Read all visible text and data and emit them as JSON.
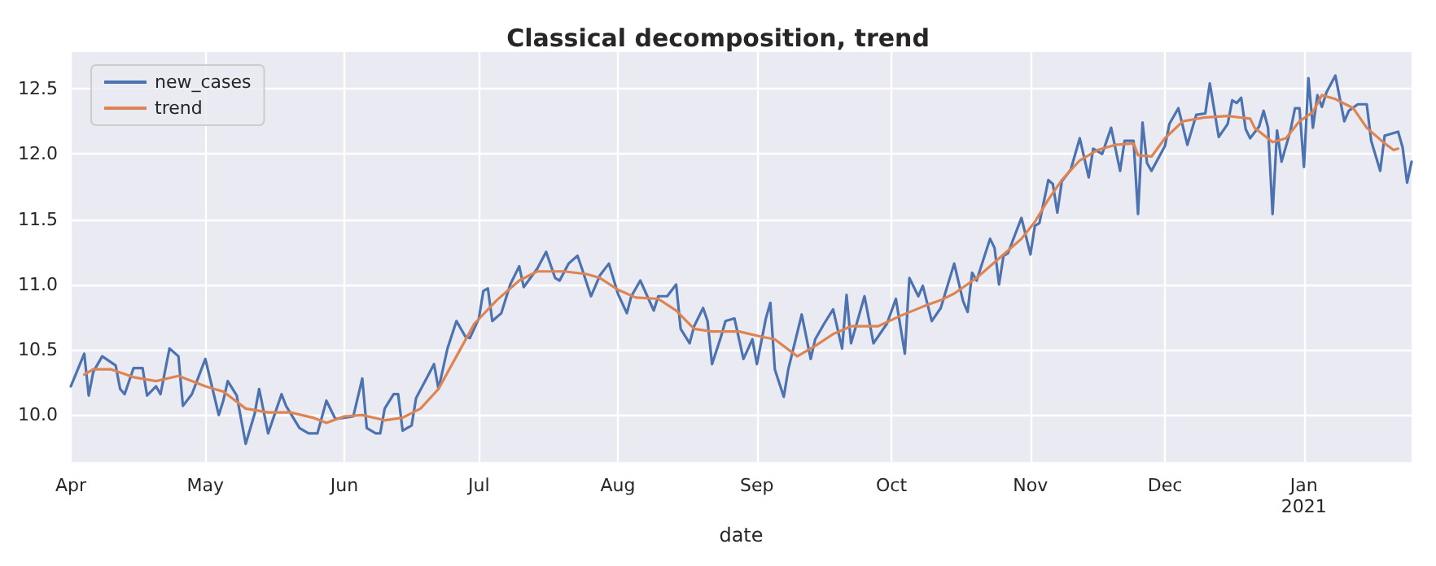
{
  "chart_data": {
    "type": "line",
    "title": "Classical decomposition, trend",
    "xlabel": "date",
    "legend": "top left",
    "grid": true,
    "line_style": "solid",
    "marker": "none",
    "xlim": [
      "2020-04-01",
      "2021-01-25"
    ],
    "xticks": [
      {
        "value": "2020-04-01",
        "label": "Apr"
      },
      {
        "value": "2020-05-01",
        "label": "May"
      },
      {
        "value": "2020-06-01",
        "label": "Jun"
      },
      {
        "value": "2020-07-01",
        "label": "Jul"
      },
      {
        "value": "2020-08-01",
        "label": "Aug"
      },
      {
        "value": "2020-09-01",
        "label": "Sep"
      },
      {
        "value": "2020-10-01",
        "label": "Oct"
      },
      {
        "value": "2020-11-01",
        "label": "Nov"
      },
      {
        "value": "2020-12-01",
        "label": "Dec"
      },
      {
        "value": "2021-01-01",
        "label": "Jan\n2021"
      }
    ],
    "ylim": [
      9.64,
      12.78
    ],
    "yticks": [
      {
        "value": 10,
        "label": "10.0"
      },
      {
        "value": 10.5,
        "label": "10.5"
      },
      {
        "value": 11,
        "label": "11.0"
      },
      {
        "value": 11.5,
        "label": "11.5"
      },
      {
        "value": 12,
        "label": "12.0"
      },
      {
        "value": 12.5,
        "label": "12.5"
      }
    ],
    "series": [
      {
        "name": "new_cases",
        "color": "#4c72b0",
        "x": [
          "2020-04-01",
          "2020-04-04",
          "2020-04-05",
          "2020-04-06",
          "2020-04-08",
          "2020-04-11",
          "2020-04-12",
          "2020-04-13",
          "2020-04-15",
          "2020-04-17",
          "2020-04-18",
          "2020-04-20",
          "2020-04-21",
          "2020-04-23",
          "2020-04-25",
          "2020-04-26",
          "2020-04-28",
          "2020-05-01",
          "2020-05-04",
          "2020-05-05",
          "2020-05-06",
          "2020-05-08",
          "2020-05-10",
          "2020-05-12",
          "2020-05-13",
          "2020-05-15",
          "2020-05-18",
          "2020-05-19",
          "2020-05-22",
          "2020-05-24",
          "2020-05-26",
          "2020-05-28",
          "2020-05-30",
          "2020-06-01",
          "2020-06-03",
          "2020-06-05",
          "2020-06-06",
          "2020-06-08",
          "2020-06-09",
          "2020-06-10",
          "2020-06-12",
          "2020-06-13",
          "2020-06-14",
          "2020-06-16",
          "2020-06-17",
          "2020-06-19",
          "2020-06-21",
          "2020-06-22",
          "2020-06-24",
          "2020-06-26",
          "2020-06-28",
          "2020-06-29",
          "2020-07-01",
          "2020-07-02",
          "2020-07-03",
          "2020-07-04",
          "2020-07-06",
          "2020-07-08",
          "2020-07-10",
          "2020-07-11",
          "2020-07-14",
          "2020-07-16",
          "2020-07-18",
          "2020-07-19",
          "2020-07-21",
          "2020-07-23",
          "2020-07-24",
          "2020-07-26",
          "2020-07-28",
          "2020-07-30",
          "2020-08-01",
          "2020-08-03",
          "2020-08-04",
          "2020-08-06",
          "2020-08-09",
          "2020-08-10",
          "2020-08-12",
          "2020-08-14",
          "2020-08-15",
          "2020-08-17",
          "2020-08-18",
          "2020-08-20",
          "2020-08-21",
          "2020-08-22",
          "2020-08-24",
          "2020-08-25",
          "2020-08-27",
          "2020-08-29",
          "2020-08-31",
          "2020-09-01",
          "2020-09-03",
          "2020-09-04",
          "2020-09-05",
          "2020-09-07",
          "2020-09-08",
          "2020-09-11",
          "2020-09-13",
          "2020-09-14",
          "2020-09-16",
          "2020-09-18",
          "2020-09-20",
          "2020-09-21",
          "2020-09-22",
          "2020-09-25",
          "2020-09-27",
          "2020-09-30",
          "2020-10-02",
          "2020-10-04",
          "2020-10-05",
          "2020-10-07",
          "2020-10-08",
          "2020-10-10",
          "2020-10-12",
          "2020-10-15",
          "2020-10-17",
          "2020-10-18",
          "2020-10-19",
          "2020-10-20",
          "2020-10-23",
          "2020-10-24",
          "2020-10-25",
          "2020-10-26",
          "2020-10-27",
          "2020-10-30",
          "2020-11-01",
          "2020-11-02",
          "2020-11-03",
          "2020-11-05",
          "2020-11-06",
          "2020-11-07",
          "2020-11-08",
          "2020-11-10",
          "2020-11-12",
          "2020-11-14",
          "2020-11-15",
          "2020-11-17",
          "2020-11-19",
          "2020-11-21",
          "2020-11-22",
          "2020-11-24",
          "2020-11-25",
          "2020-11-26",
          "2020-11-27",
          "2020-11-28",
          "2020-12-01",
          "2020-12-02",
          "2020-12-04",
          "2020-12-06",
          "2020-12-08",
          "2020-12-10",
          "2020-12-11",
          "2020-12-13",
          "2020-12-15",
          "2020-12-16",
          "2020-12-17",
          "2020-12-18",
          "2020-12-19",
          "2020-12-20",
          "2020-12-22",
          "2020-12-23",
          "2020-12-24",
          "2020-12-25",
          "2020-12-26",
          "2020-12-27",
          "2020-12-29",
          "2020-12-30",
          "2020-12-31",
          "2021-01-01",
          "2021-01-02",
          "2021-01-03",
          "2021-01-04",
          "2021-01-05",
          "2021-01-06",
          "2021-01-08",
          "2021-01-10",
          "2021-01-11",
          "2021-01-13",
          "2021-01-15",
          "2021-01-16",
          "2021-01-18",
          "2021-01-19",
          "2021-01-20",
          "2021-01-22",
          "2021-01-23",
          "2021-01-24",
          "2021-01-25"
        ],
        "values": [
          10.22,
          10.47,
          10.15,
          10.33,
          10.45,
          10.38,
          10.2,
          10.16,
          10.36,
          10.36,
          10.15,
          10.22,
          10.16,
          10.51,
          10.45,
          10.07,
          10.16,
          10.43,
          10.0,
          10.11,
          10.26,
          10.15,
          9.78,
          10.01,
          10.2,
          9.86,
          10.16,
          10.07,
          9.9,
          9.86,
          9.86,
          10.11,
          9.97,
          9.98,
          9.99,
          10.28,
          9.9,
          9.86,
          9.86,
          10.05,
          10.16,
          10.16,
          9.88,
          9.92,
          10.13,
          10.26,
          10.39,
          10.2,
          10.51,
          10.72,
          10.6,
          10.59,
          10.74,
          10.95,
          10.97,
          10.72,
          10.78,
          11.0,
          11.14,
          10.98,
          11.12,
          11.25,
          11.05,
          11.03,
          11.16,
          11.22,
          11.12,
          10.91,
          11.07,
          11.16,
          10.93,
          10.78,
          10.91,
          11.03,
          10.8,
          10.91,
          10.91,
          11.0,
          10.66,
          10.55,
          10.68,
          10.82,
          10.72,
          10.39,
          10.6,
          10.72,
          10.74,
          10.43,
          10.58,
          10.39,
          10.74,
          10.86,
          10.35,
          10.14,
          10.35,
          10.77,
          10.43,
          10.58,
          10.7,
          10.81,
          10.51,
          10.92,
          10.55,
          10.91,
          10.55,
          10.7,
          10.89,
          10.47,
          11.05,
          10.91,
          10.99,
          10.72,
          10.82,
          11.16,
          10.87,
          10.79,
          11.09,
          11.03,
          11.35,
          11.28,
          11.0,
          11.22,
          11.24,
          11.51,
          11.23,
          11.45,
          11.47,
          11.8,
          11.77,
          11.55,
          11.79,
          11.88,
          12.12,
          11.82,
          12.04,
          12.0,
          12.2,
          11.87,
          12.1,
          12.1,
          11.54,
          12.24,
          11.93,
          11.87,
          12.06,
          12.23,
          12.35,
          12.07,
          12.3,
          12.31,
          12.54,
          12.13,
          12.23,
          12.41,
          12.39,
          12.43,
          12.19,
          12.12,
          12.21,
          12.33,
          12.2,
          11.54,
          12.18,
          11.94,
          12.18,
          12.35,
          12.35,
          11.9,
          12.58,
          12.2,
          12.45,
          12.36,
          12.47,
          12.6,
          12.25,
          12.33,
          12.38,
          12.38,
          12.1,
          11.87,
          12.14,
          12.15,
          12.17,
          12.05,
          11.78,
          11.94
        ]
      },
      {
        "name": "trend",
        "color": "#dd8452",
        "x": [
          "2020-04-04",
          "2020-04-06",
          "2020-04-10",
          "2020-04-15",
          "2020-04-20",
          "2020-04-25",
          "2020-05-01",
          "2020-05-05",
          "2020-05-10",
          "2020-05-15",
          "2020-05-20",
          "2020-05-25",
          "2020-05-28",
          "2020-06-01",
          "2020-06-05",
          "2020-06-10",
          "2020-06-14",
          "2020-06-18",
          "2020-06-22",
          "2020-06-26",
          "2020-06-30",
          "2020-07-05",
          "2020-07-10",
          "2020-07-14",
          "2020-07-20",
          "2020-07-25",
          "2020-07-28",
          "2020-08-01",
          "2020-08-05",
          "2020-08-10",
          "2020-08-14",
          "2020-08-18",
          "2020-08-22",
          "2020-08-28",
          "2020-09-02",
          "2020-09-05",
          "2020-09-10",
          "2020-09-14",
          "2020-09-18",
          "2020-09-22",
          "2020-09-28",
          "2020-10-03",
          "2020-10-08",
          "2020-10-12",
          "2020-10-15",
          "2020-10-20",
          "2020-10-25",
          "2020-10-30",
          "2020-11-02",
          "2020-11-05",
          "2020-11-08",
          "2020-11-12",
          "2020-11-16",
          "2020-11-20",
          "2020-11-24",
          "2020-11-25",
          "2020-11-28",
          "2020-12-01",
          "2020-12-05",
          "2020-12-10",
          "2020-12-15",
          "2020-12-20",
          "2020-12-21",
          "2020-12-25",
          "2020-12-28",
          "2020-12-31",
          "2021-01-03",
          "2021-01-05",
          "2021-01-08",
          "2021-01-12",
          "2021-01-15",
          "2021-01-19",
          "2021-01-21",
          "2021-01-22"
        ],
        "values": [
          10.31,
          10.35,
          10.35,
          10.29,
          10.26,
          10.3,
          10.22,
          10.18,
          10.05,
          10.02,
          10.02,
          9.98,
          9.94,
          9.99,
          10.0,
          9.96,
          9.98,
          10.05,
          10.2,
          10.45,
          10.7,
          10.88,
          11.03,
          11.1,
          11.1,
          11.08,
          11.05,
          10.96,
          10.9,
          10.89,
          10.8,
          10.66,
          10.64,
          10.64,
          10.6,
          10.58,
          10.45,
          10.53,
          10.62,
          10.68,
          10.68,
          10.76,
          10.83,
          10.88,
          10.93,
          11.05,
          11.2,
          11.35,
          11.48,
          11.65,
          11.8,
          11.95,
          12.03,
          12.07,
          12.08,
          11.99,
          11.98,
          12.12,
          12.25,
          12.28,
          12.29,
          12.27,
          12.2,
          12.09,
          12.12,
          12.25,
          12.32,
          12.45,
          12.42,
          12.35,
          12.2,
          12.08,
          12.03,
          12.04
        ]
      }
    ]
  }
}
